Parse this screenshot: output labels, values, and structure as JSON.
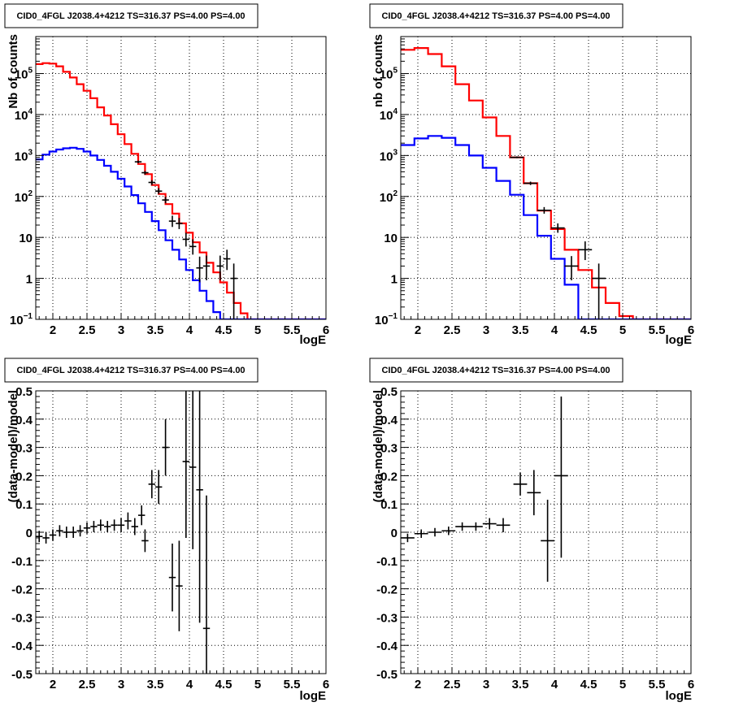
{
  "chart_data": [
    {
      "type": "line",
      "title": "CID0_4FGL J2038.4+4212 TS=316.37 PS=4.00 PS=4.00",
      "xlabel": "logE",
      "ylabel": "Nb of counts",
      "xlim": [
        1.75,
        6.0
      ],
      "ylim": [
        0.1,
        800000
      ],
      "yscale": "log",
      "grid": true,
      "xticks": [
        "2",
        "2.5",
        "3",
        "3.5",
        "4",
        "4.5",
        "5",
        "5.5",
        "6"
      ],
      "yticks": [
        {
          "value": 0.1,
          "label": "10",
          "exp": "−1"
        },
        {
          "value": 1,
          "label": "1"
        },
        {
          "value": 10,
          "label": "10"
        },
        {
          "value": 100,
          "label": "10",
          "exp": "2"
        },
        {
          "value": 1000,
          "label": "10",
          "exp": "3"
        },
        {
          "value": 10000,
          "label": "10",
          "exp": "4"
        },
        {
          "value": 100000,
          "label": "10",
          "exp": "5"
        }
      ],
      "series": [
        {
          "name": "",
          "kind": "histogram",
          "color": "#ff0000",
          "edges": [
            1.75,
            1.85,
            1.95,
            2.05,
            2.15,
            2.25,
            2.35,
            2.45,
            2.55,
            2.65,
            2.75,
            2.85,
            2.95,
            3.05,
            3.15,
            3.25,
            3.35,
            3.45,
            3.55,
            3.65,
            3.75,
            3.85,
            3.95,
            4.05,
            4.15,
            4.25,
            4.35,
            4.45,
            4.55,
            4.65,
            4.75,
            4.85,
            4.95,
            5.05,
            5.15,
            5.25,
            5.35,
            5.45,
            5.55,
            5.65,
            5.75,
            5.85,
            5.95,
            6.0
          ],
          "values": [
            170000,
            180000,
            175000,
            150000,
            110000,
            80000,
            55000,
            38000,
            25000,
            15000,
            9500,
            5800,
            3300,
            1900,
            1100,
            620,
            350,
            190,
            115,
            65,
            38,
            22,
            13,
            7.6,
            4.3,
            2.4,
            1.4,
            0.8,
            0.45,
            0.25,
            0.14,
            0.1,
            0.1,
            0.1,
            0.1,
            0.1,
            0.1,
            0.1,
            0.1,
            0.1,
            0.1,
            0.1,
            0.1
          ]
        },
        {
          "name": "",
          "kind": "histogram",
          "color": "#0000ff",
          "edges": [
            1.75,
            1.85,
            1.95,
            2.05,
            2.15,
            2.25,
            2.35,
            2.45,
            2.55,
            2.65,
            2.75,
            2.85,
            2.95,
            3.05,
            3.15,
            3.25,
            3.35,
            3.45,
            3.55,
            3.65,
            3.75,
            3.85,
            3.95,
            4.05,
            4.15,
            4.25,
            4.35,
            4.45,
            4.55,
            4.65,
            4.75,
            4.85,
            4.95,
            5.05,
            5.15,
            5.25,
            5.35,
            5.45,
            5.55,
            5.65,
            5.75,
            5.85,
            5.95,
            6.0
          ],
          "values": [
            800,
            1050,
            1250,
            1400,
            1500,
            1550,
            1450,
            1250,
            1000,
            780,
            560,
            400,
            270,
            175,
            108,
            68,
            42,
            25,
            15,
            8.5,
            5,
            2.9,
            1.6,
            0.9,
            0.5,
            0.28,
            0.15,
            0.1,
            0.1,
            0.1,
            0.1,
            0.1,
            0.1,
            0.1,
            0.1,
            0.1,
            0.1,
            0.1,
            0.1,
            0.1,
            0.1,
            0.1,
            0.1
          ]
        },
        {
          "name": "",
          "kind": "points",
          "color": "#000000",
          "points": [
            {
              "x": 3.25,
              "y": 700,
              "xerr": 0.05,
              "ylo": 650,
              "yhi": 750
            },
            {
              "x": 3.35,
              "y": 380,
              "xerr": 0.05,
              "ylo": 340,
              "yhi": 420
            },
            {
              "x": 3.45,
              "y": 220,
              "xerr": 0.05,
              "ylo": 190,
              "yhi": 250
            },
            {
              "x": 3.55,
              "y": 135,
              "xerr": 0.05,
              "ylo": 115,
              "yhi": 160
            },
            {
              "x": 3.65,
              "y": 82,
              "xerr": 0.05,
              "ylo": 68,
              "yhi": 98
            },
            {
              "x": 3.75,
              "y": 25,
              "xerr": 0.05,
              "ylo": 18,
              "yhi": 34
            },
            {
              "x": 3.85,
              "y": 22,
              "xerr": 0.05,
              "ylo": 16,
              "yhi": 30
            },
            {
              "x": 3.95,
              "y": 9,
              "xerr": 0.05,
              "ylo": 6,
              "yhi": 13
            },
            {
              "x": 4.05,
              "y": 6,
              "xerr": 0.05,
              "ylo": 3.8,
              "yhi": 9
            },
            {
              "x": 4.15,
              "y": 1.8,
              "xerr": 0.05,
              "ylo": 0.8,
              "yhi": 3.4
            },
            {
              "x": 4.25,
              "y": 2,
              "xerr": 0.05,
              "ylo": 0.9,
              "yhi": 3.6
            },
            {
              "x": 4.45,
              "y": 2,
              "xerr": 0.05,
              "ylo": 0.9,
              "yhi": 3.6
            },
            {
              "x": 4.55,
              "y": 3,
              "xerr": 0.05,
              "ylo": 1.6,
              "yhi": 5
            },
            {
              "x": 4.65,
              "y": 1,
              "xerr": 0.05,
              "ylo": 0.1,
              "yhi": 2.3
            }
          ]
        }
      ]
    },
    {
      "type": "line",
      "title": "CID0_4FGL J2038.4+4212 TS=316.37 PS=4.00 PS=4.00",
      "xlabel": "logE",
      "ylabel": "nb of counts",
      "xlim": [
        1.75,
        6.0
      ],
      "ylim": [
        0.1,
        800000
      ],
      "yscale": "log",
      "grid": true,
      "xticks": [
        "2",
        "2.5",
        "3",
        "3.5",
        "4",
        "4.5",
        "5",
        "5.5",
        "6"
      ],
      "yticks": [
        {
          "value": 0.1,
          "label": "10",
          "exp": "−1"
        },
        {
          "value": 1,
          "label": "1"
        },
        {
          "value": 10,
          "label": "10"
        },
        {
          "value": 100,
          "label": "10",
          "exp": "2"
        },
        {
          "value": 1000,
          "label": "10",
          "exp": "3"
        },
        {
          "value": 10000,
          "label": "10",
          "exp": "4"
        },
        {
          "value": 100000,
          "label": "10",
          "exp": "5"
        }
      ],
      "series": [
        {
          "name": "",
          "kind": "histogram",
          "color": "#ff0000",
          "edges": [
            1.75,
            1.95,
            2.15,
            2.35,
            2.55,
            2.75,
            2.95,
            3.15,
            3.35,
            3.55,
            3.75,
            3.95,
            4.15,
            4.35,
            4.55,
            4.75,
            4.95,
            5.15,
            5.35,
            5.55,
            5.75,
            5.95,
            6.0
          ],
          "values": [
            380000,
            420000,
            300000,
            150000,
            55000,
            22000,
            8500,
            3000,
            900,
            210,
            45,
            16,
            5,
            1.6,
            0.6,
            0.25,
            0.12,
            0.1,
            0.1,
            0.1,
            0.1,
            0.1
          ]
        },
        {
          "name": "",
          "kind": "histogram",
          "color": "#0000ff",
          "edges": [
            1.75,
            1.95,
            2.15,
            2.35,
            2.55,
            2.75,
            2.95,
            3.15,
            3.35,
            3.55,
            3.75,
            3.95,
            4.15,
            4.35,
            4.55,
            4.75,
            4.95,
            5.15,
            5.35,
            5.55,
            5.75,
            5.95,
            6.0
          ],
          "values": [
            1800,
            2600,
            3000,
            2700,
            1800,
            1000,
            500,
            240,
            110,
            35,
            11,
            3,
            0.7,
            0.1,
            0.1,
            0.1,
            0.1,
            0.1,
            0.1,
            0.1,
            0.1,
            0.1
          ]
        },
        {
          "name": "",
          "kind": "points",
          "color": "#000000",
          "points": [
            {
              "x": 3.45,
              "y": 900,
              "xerr": 0.1,
              "ylo": 860,
              "yhi": 950
            },
            {
              "x": 3.65,
              "y": 210,
              "xerr": 0.1,
              "ylo": 190,
              "yhi": 230
            },
            {
              "x": 3.85,
              "y": 46,
              "xerr": 0.1,
              "ylo": 38,
              "yhi": 55
            },
            {
              "x": 4.05,
              "y": 17,
              "xerr": 0.1,
              "ylo": 13,
              "yhi": 22
            },
            {
              "x": 4.25,
              "y": 2,
              "xerr": 0.1,
              "ylo": 0.9,
              "yhi": 3.5
            },
            {
              "x": 4.45,
              "y": 5,
              "xerr": 0.1,
              "ylo": 2.8,
              "yhi": 8
            },
            {
              "x": 4.65,
              "y": 1,
              "xerr": 0.1,
              "ylo": 0.1,
              "yhi": 2.3
            }
          ]
        }
      ]
    },
    {
      "type": "scatter",
      "title": "CID0_4FGL J2038.4+4212 TS=316.37 PS=4.00 PS=4.00",
      "xlabel": "logE",
      "ylabel": "(data-model)/model",
      "xlim": [
        1.75,
        6.0
      ],
      "ylim": [
        -0.5,
        0.5
      ],
      "grid": true,
      "xticks": [
        "2",
        "2.5",
        "3",
        "3.5",
        "4",
        "4.5",
        "5",
        "5.5",
        "6"
      ],
      "yticks": [
        "-0.5",
        "-0.4",
        "-0.3",
        "-0.2",
        "-0.1",
        "0",
        "0.1",
        "0.2",
        "0.3",
        "0.4",
        "0.5"
      ],
      "series": [
        {
          "name": "",
          "kind": "points",
          "color": "#000000",
          "points": [
            {
              "x": 1.8,
              "y": -0.015,
              "xerr": 0.05,
              "ylo": -0.035,
              "yhi": 0.005
            },
            {
              "x": 1.9,
              "y": -0.02,
              "xerr": 0.05,
              "ylo": -0.04,
              "yhi": 0.0
            },
            {
              "x": 2.0,
              "y": -0.01,
              "xerr": 0.05,
              "ylo": -0.03,
              "yhi": 0.01
            },
            {
              "x": 2.1,
              "y": 0.005,
              "xerr": 0.05,
              "ylo": -0.015,
              "yhi": 0.025
            },
            {
              "x": 2.2,
              "y": 0.0,
              "xerr": 0.05,
              "ylo": -0.02,
              "yhi": 0.02
            },
            {
              "x": 2.3,
              "y": 0.0,
              "xerr": 0.05,
              "ylo": -0.02,
              "yhi": 0.02
            },
            {
              "x": 2.4,
              "y": 0.005,
              "xerr": 0.05,
              "ylo": -0.015,
              "yhi": 0.025
            },
            {
              "x": 2.5,
              "y": 0.015,
              "xerr": 0.05,
              "ylo": -0.005,
              "yhi": 0.035
            },
            {
              "x": 2.6,
              "y": 0.02,
              "xerr": 0.05,
              "ylo": 0.0,
              "yhi": 0.04
            },
            {
              "x": 2.7,
              "y": 0.025,
              "xerr": 0.05,
              "ylo": 0.005,
              "yhi": 0.045
            },
            {
              "x": 2.8,
              "y": 0.02,
              "xerr": 0.05,
              "ylo": 0.0,
              "yhi": 0.04
            },
            {
              "x": 2.9,
              "y": 0.025,
              "xerr": 0.05,
              "ylo": 0.005,
              "yhi": 0.045
            },
            {
              "x": 3.0,
              "y": 0.025,
              "xerr": 0.05,
              "ylo": 0.0,
              "yhi": 0.05
            },
            {
              "x": 3.1,
              "y": 0.04,
              "xerr": 0.05,
              "ylo": 0.01,
              "yhi": 0.07
            },
            {
              "x": 3.2,
              "y": 0.02,
              "xerr": 0.05,
              "ylo": -0.01,
              "yhi": 0.05
            },
            {
              "x": 3.3,
              "y": 0.06,
              "xerr": 0.05,
              "ylo": 0.025,
              "yhi": 0.095
            },
            {
              "x": 3.35,
              "y": -0.03,
              "xerr": 0.05,
              "ylo": -0.07,
              "yhi": 0.01
            },
            {
              "x": 3.45,
              "y": 0.17,
              "xerr": 0.05,
              "ylo": 0.12,
              "yhi": 0.22
            },
            {
              "x": 3.55,
              "y": 0.16,
              "xerr": 0.05,
              "ylo": 0.1,
              "yhi": 0.22
            },
            {
              "x": 3.65,
              "y": 0.3,
              "xerr": 0.05,
              "ylo": 0.2,
              "yhi": 0.4
            },
            {
              "x": 3.75,
              "y": -0.16,
              "xerr": 0.05,
              "ylo": -0.28,
              "yhi": -0.04
            },
            {
              "x": 3.85,
              "y": -0.19,
              "xerr": 0.05,
              "ylo": -0.35,
              "yhi": -0.03
            },
            {
              "x": 3.95,
              "y": 0.25,
              "xerr": 0.05,
              "ylo": -0.02,
              "yhi": 0.5
            },
            {
              "x": 4.05,
              "y": 0.23,
              "xerr": 0.05,
              "ylo": -0.06,
              "yhi": 0.5
            },
            {
              "x": 4.15,
              "y": 0.15,
              "xerr": 0.05,
              "ylo": -0.32,
              "yhi": 0.5
            },
            {
              "x": 4.25,
              "y": -0.34,
              "xerr": 0.05,
              "ylo": -0.5,
              "yhi": 0.13
            }
          ]
        }
      ]
    },
    {
      "type": "scatter",
      "title": "CID0_4FGL J2038.4+4212 TS=316.37 PS=4.00 PS=4.00",
      "xlabel": "logE",
      "ylabel": "(data-model)/model",
      "xlim": [
        1.75,
        6.0
      ],
      "ylim": [
        -0.5,
        0.5
      ],
      "grid": true,
      "xticks": [
        "2",
        "2.5",
        "3",
        "3.5",
        "4",
        "4.5",
        "5",
        "5.5",
        "6"
      ],
      "yticks": [
        "-0.5",
        "-0.4",
        "-0.3",
        "-0.2",
        "-0.1",
        "0",
        "0.1",
        "0.2",
        "0.3",
        "0.4",
        "0.5"
      ],
      "series": [
        {
          "name": "",
          "kind": "points",
          "color": "#000000",
          "points": [
            {
              "x": 1.85,
              "y": -0.02,
              "xerr": 0.1,
              "ylo": -0.035,
              "yhi": -0.005
            },
            {
              "x": 2.05,
              "y": -0.005,
              "xerr": 0.1,
              "ylo": -0.02,
              "yhi": 0.01
            },
            {
              "x": 2.25,
              "y": 0.0,
              "xerr": 0.1,
              "ylo": -0.015,
              "yhi": 0.015
            },
            {
              "x": 2.45,
              "y": 0.005,
              "xerr": 0.1,
              "ylo": -0.01,
              "yhi": 0.02
            },
            {
              "x": 2.65,
              "y": 0.02,
              "xerr": 0.1,
              "ylo": 0.005,
              "yhi": 0.035
            },
            {
              "x": 2.85,
              "y": 0.02,
              "xerr": 0.1,
              "ylo": 0.005,
              "yhi": 0.035
            },
            {
              "x": 3.05,
              "y": 0.03,
              "xerr": 0.1,
              "ylo": 0.01,
              "yhi": 0.05
            },
            {
              "x": 3.25,
              "y": 0.025,
              "xerr": 0.1,
              "ylo": 0.0,
              "yhi": 0.05
            },
            {
              "x": 3.5,
              "y": 0.17,
              "xerr": 0.1,
              "ylo": 0.13,
              "yhi": 0.21
            },
            {
              "x": 3.7,
              "y": 0.14,
              "xerr": 0.1,
              "ylo": 0.06,
              "yhi": 0.22
            },
            {
              "x": 3.9,
              "y": -0.03,
              "xerr": 0.1,
              "ylo": -0.175,
              "yhi": 0.115
            },
            {
              "x": 4.1,
              "y": 0.2,
              "xerr": 0.1,
              "ylo": -0.09,
              "yhi": 0.48
            }
          ]
        }
      ]
    }
  ]
}
